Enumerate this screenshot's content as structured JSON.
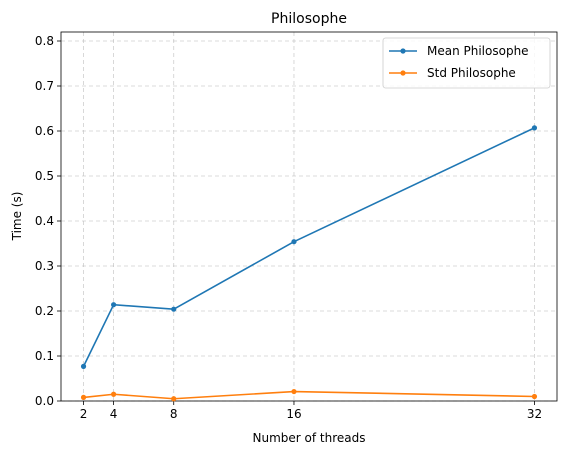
{
  "chart_data": {
    "type": "line",
    "title": "Philosophe",
    "xlabel": "Number of threads",
    "ylabel": "Time (s)",
    "x": [
      2,
      4,
      8,
      16,
      32
    ],
    "xticks": [
      2,
      4,
      8,
      16,
      32
    ],
    "xlim": [
      0.5,
      33.5
    ],
    "ylim": [
      0,
      0.82
    ],
    "yticks": [
      "0.0",
      "0.1",
      "0.2",
      "0.3",
      "0.4",
      "0.5",
      "0.6",
      "0.7",
      "0.8"
    ],
    "grid": true,
    "legend_position": "top-right",
    "series": [
      {
        "name": "Mean Philosophe",
        "color": "#1f77b4",
        "values": [
          0.077,
          0.214,
          0.204,
          0.354,
          0.607
        ]
      },
      {
        "name": "Std Philosophe",
        "color": "#ff7f0e",
        "values": [
          0.008,
          0.015,
          0.005,
          0.021,
          0.01
        ]
      }
    ]
  }
}
